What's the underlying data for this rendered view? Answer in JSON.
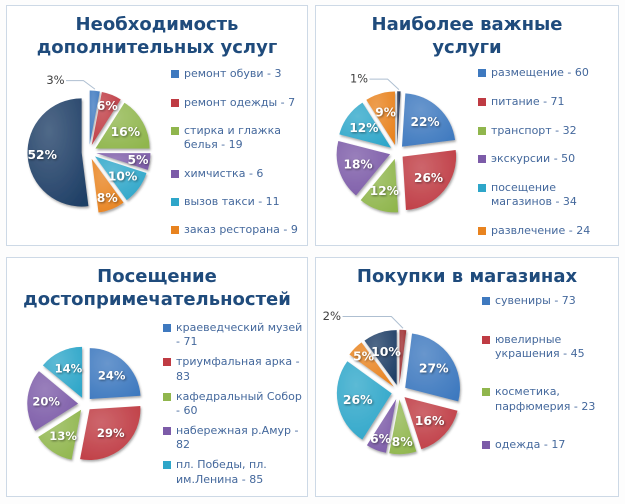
{
  "palette": {
    "blue": "#3E79BF",
    "red": "#BF3B43",
    "green": "#90B64D",
    "purple": "#7C5BA8",
    "teal": "#2EA6C9",
    "orange": "#E8831F",
    "navy": "#1F3F66",
    "darknavy": "#16294B",
    "darkred": "#9C2B2E",
    "title_color": "#1F4B7C",
    "legend_text_color": "#44689C",
    "outside_label_color": "#3F3F3F",
    "leader_line_color": "#AEBFD1",
    "panel_border_color": "#CDD9E6"
  },
  "chart_data": [
    {
      "type": "pie",
      "title": "Необходимость дополнительных услуг",
      "legend_position": "right",
      "outside_label_pos": {
        "x": 48,
        "y": 17
      },
      "slices": [
        {
          "legend": "ремонт обуви - 3",
          "count": 3,
          "percent": 3,
          "label": "3%",
          "color": "blue",
          "label_outside": true
        },
        {
          "legend": "ремонт одежды - 7",
          "count": 7,
          "percent": 6,
          "label": "6%",
          "color": "red"
        },
        {
          "legend": "стирка и глажка белья - 19",
          "count": 19,
          "percent": 16,
          "label": "16%",
          "color": "green"
        },
        {
          "legend": "химчистка - 6",
          "count": 6,
          "percent": 5,
          "label": "5%",
          "color": "purple"
        },
        {
          "legend": "вызов такси - 11",
          "count": 11,
          "percent": 10,
          "label": "10%",
          "color": "teal"
        },
        {
          "legend": "заказ ресторана - 9",
          "count": 9,
          "percent": 8,
          "label": "8%",
          "color": "orange"
        },
        {
          "legend": null,
          "count": null,
          "percent": 52,
          "label": "52%",
          "color": "navy"
        }
      ]
    },
    {
      "type": "pie",
      "title": "Наиболее важные услуги",
      "legend_position": "right",
      "outside_label_pos": {
        "x": 42,
        "y": 14
      },
      "slices": [
        {
          "legend": null,
          "count": null,
          "percent": 1,
          "label": "1%",
          "color": "darknavy",
          "label_outside": true
        },
        {
          "legend": "размещение - 60",
          "count": 60,
          "percent": 22,
          "label": "22%",
          "color": "blue"
        },
        {
          "legend": "питание - 71",
          "count": 71,
          "percent": 26,
          "label": "26%",
          "color": "red"
        },
        {
          "legend": "транспорт - 32",
          "count": 32,
          "percent": 12,
          "label": "12%",
          "color": "green"
        },
        {
          "legend": "экскурсии - 50",
          "count": 50,
          "percent": 18,
          "label": "18%",
          "color": "purple"
        },
        {
          "legend": "посещение магазинов - 34",
          "count": 34,
          "percent": 12,
          "label": "12%",
          "color": "teal"
        },
        {
          "legend": "развлечение - 24",
          "count": 24,
          "percent": 9,
          "label": "9%",
          "color": "orange"
        }
      ]
    },
    {
      "type": "pie",
      "title": "Посещение достопримечательностей",
      "legend_position": "right",
      "slices": [
        {
          "legend": "краеведческий музей - 71",
          "count": 71,
          "percent": 24,
          "label": "24%",
          "color": "blue"
        },
        {
          "legend": "триумфальная арка - 83",
          "count": 83,
          "percent": 29,
          "label": "29%",
          "color": "red"
        },
        {
          "legend": "кафедральный Собор - 60",
          "count": 60,
          "percent": 13,
          "label": "13%",
          "color": "green"
        },
        {
          "legend": "набережная р.Амур - 82",
          "count": 82,
          "percent": 20,
          "label": "20%",
          "color": "purple"
        },
        {
          "legend": "пл. Победы, пл. им.Ленина - 85",
          "count": 85,
          "percent": 14,
          "label": "14%",
          "color": "teal"
        }
      ]
    },
    {
      "type": "pie",
      "title": "Покупки в магазинах",
      "legend_position": "right",
      "outside_label_pos": {
        "x": 8,
        "y": 13
      },
      "slices": [
        {
          "legend": null,
          "count": null,
          "percent": 2,
          "label": "2%",
          "color": "darkred",
          "label_outside": true
        },
        {
          "legend": "сувениры - 73",
          "count": 73,
          "percent": 27,
          "label": "27%",
          "color": "blue"
        },
        {
          "legend": "ювелирные украшения - 45",
          "count": 45,
          "percent": 16,
          "label": "16%",
          "color": "red"
        },
        {
          "legend": "косметика, парфюмерия - 23",
          "count": 23,
          "percent": 8,
          "label": "8%",
          "color": "green"
        },
        {
          "legend": "одежда - 17",
          "count": 17,
          "percent": 6,
          "label": "6%",
          "color": "purple"
        },
        {
          "legend": null,
          "count": null,
          "percent": 26,
          "label": "26%",
          "color": "teal"
        },
        {
          "legend": null,
          "count": null,
          "percent": 5,
          "label": "5%",
          "color": "orange"
        },
        {
          "legend": null,
          "count": null,
          "percent": 10,
          "label": "10%",
          "color": "navy"
        }
      ]
    }
  ]
}
